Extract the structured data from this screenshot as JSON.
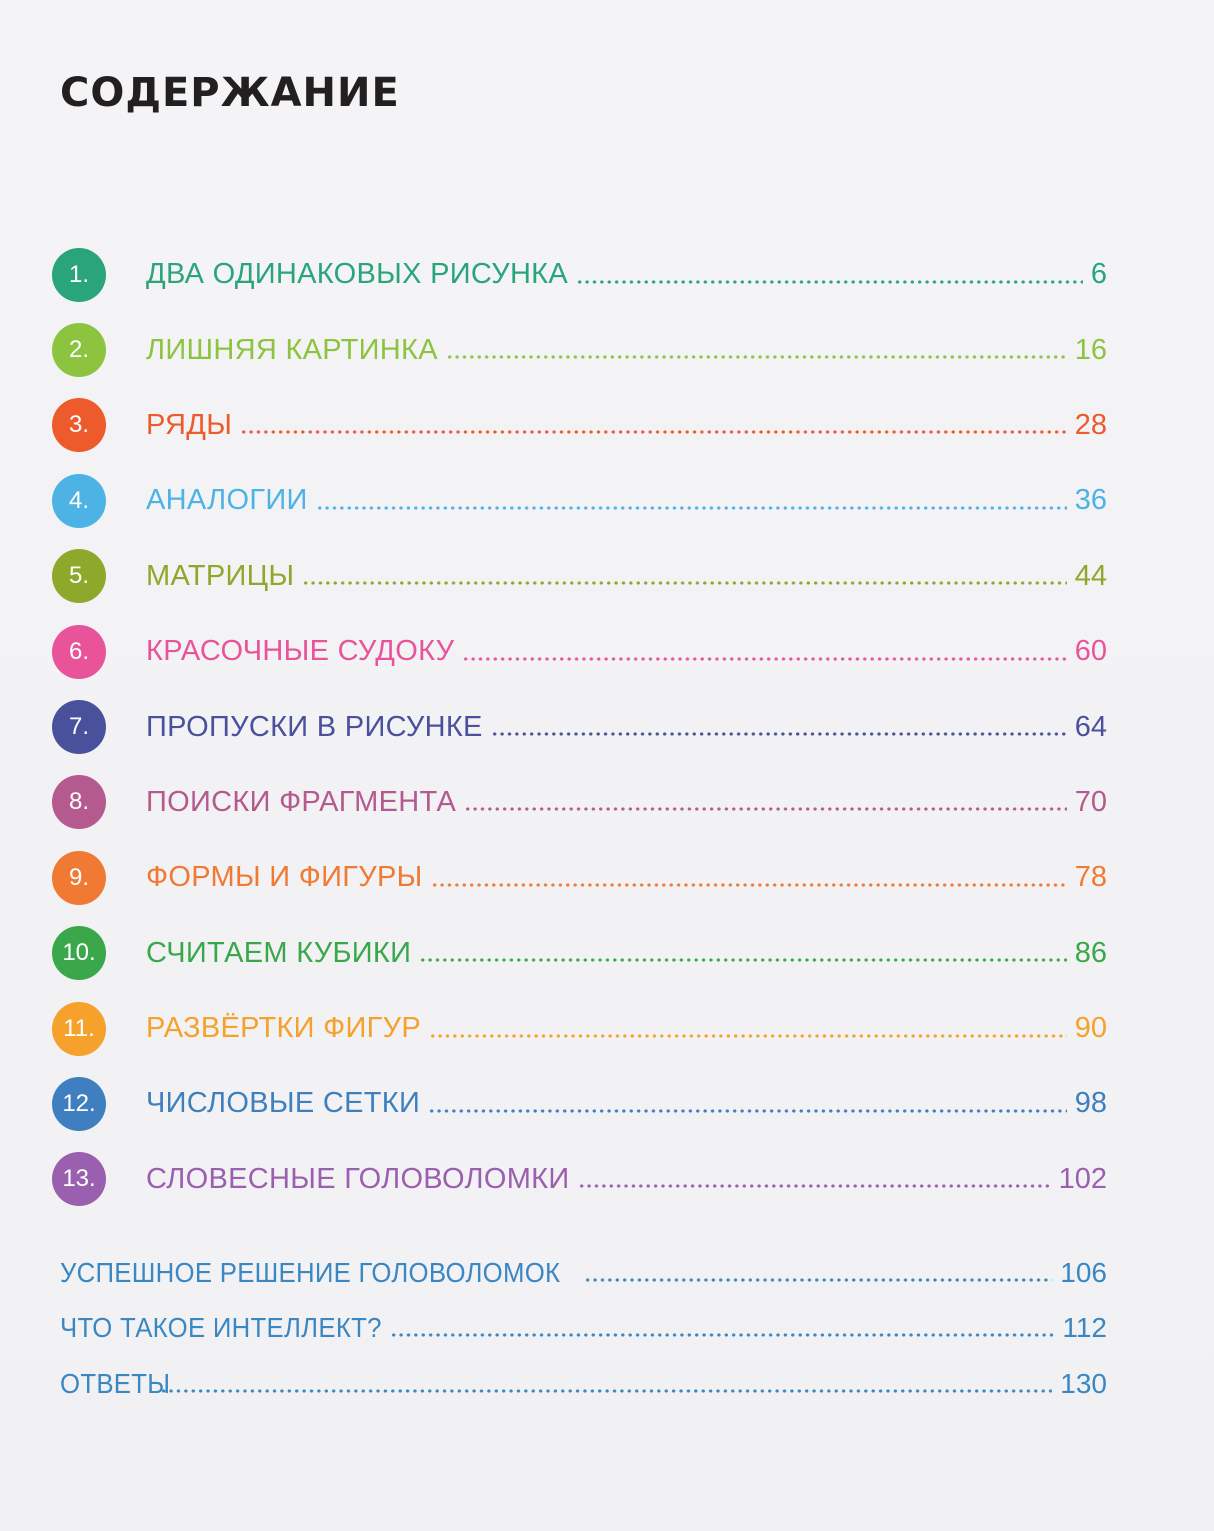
{
  "page": {
    "title": "СОДЕРЖАНИЕ"
  },
  "chapters": [
    {
      "number": "1.",
      "label": "ДВА ОДИНАКОВЫХ РИСУНКА",
      "page": "6",
      "color": "#2aa57b"
    },
    {
      "number": "2.",
      "label": "ЛИШНЯЯ КАРТИНКА",
      "page": "16",
      "color": "#8cc43f"
    },
    {
      "number": "3.",
      "label": "РЯДЫ",
      "page": "28",
      "color": "#ed5a2c"
    },
    {
      "number": "4.",
      "label": "АНАЛОГИИ",
      "page": "36",
      "color": "#4db3e4"
    },
    {
      "number": "5.",
      "label": "МАТРИЦЫ",
      "page": "44",
      "color": "#8ea82c"
    },
    {
      "number": "6.",
      "label": "КРАСОЧНЫЕ СУДОКУ",
      "page": "60",
      "color": "#e9539a"
    },
    {
      "number": "7.",
      "label": "ПРОПУСКИ В РИСУНКЕ",
      "page": "64",
      "color": "#4a519c"
    },
    {
      "number": "8.",
      "label": "ПОИСКИ ФРАГМЕНТА",
      "page": "70",
      "color": "#b45a8f"
    },
    {
      "number": "9.",
      "label": "ФОРМЫ И ФИГУРЫ",
      "page": "78",
      "color": "#f07a34"
    },
    {
      "number": "10.",
      "label": "СЧИТАЕМ КУБИКИ",
      "page": "86",
      "color": "#3aa84a"
    },
    {
      "number": "11.",
      "label": "РАЗВЁРТКИ ФИГУР",
      "page": "90",
      "color": "#f5a12b"
    },
    {
      "number": "12.",
      "label": "ЧИСЛОВЫЕ СЕТКИ",
      "page": "98",
      "color": "#3f7fbf"
    },
    {
      "number": "13.",
      "label": "СЛОВЕСНЫЕ ГОЛОВОЛОМКИ",
      "page": "102",
      "color": "#9b5fb0"
    }
  ],
  "extras": [
    {
      "label": "УСПЕШНОЕ РЕШЕНИЕ ГОЛОВОЛОМОК",
      "page": "106"
    },
    {
      "label": "ЧТО ТАКОЕ ИНТЕЛЛЕКТ?",
      "page": "112"
    },
    {
      "label": "ОТВЕТЫ",
      "page": "130"
    }
  ],
  "colors": {
    "title": "#231f20",
    "extras": "#3a87c2",
    "background": "#f3f3f5"
  }
}
